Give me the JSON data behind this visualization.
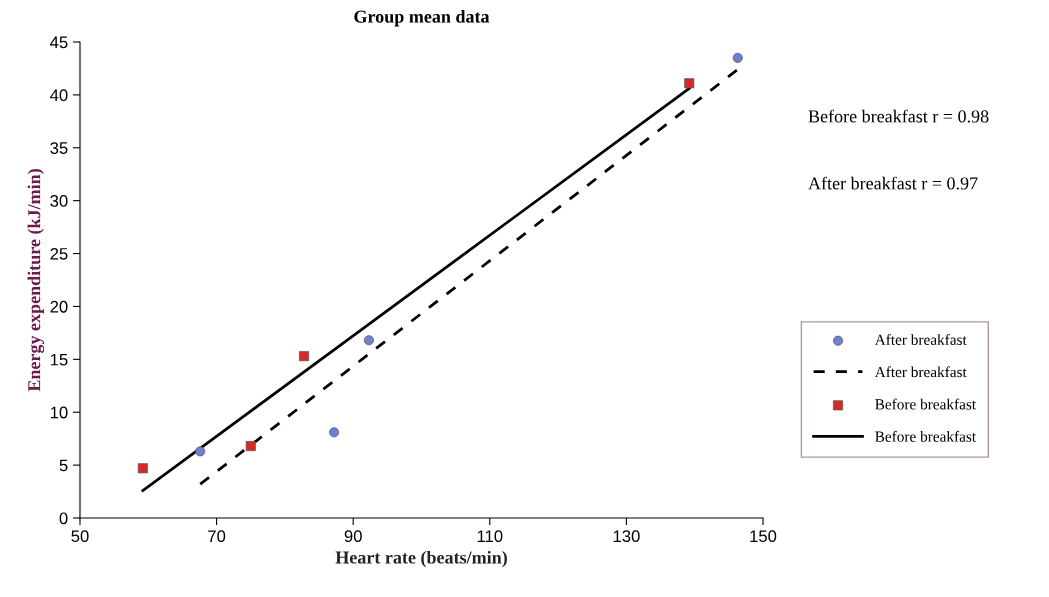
{
  "chart_data": {
    "type": "scatter",
    "title": "Group mean data",
    "xlabel": "Heart rate (beats/min)",
    "ylabel": "Energy expenditure (kJ/min)",
    "xlim": [
      50,
      150
    ],
    "xticks": [
      50,
      70,
      90,
      110,
      130,
      150
    ],
    "ylim": [
      0,
      45
    ],
    "yticks": [
      0,
      5,
      10,
      15,
      20,
      25,
      30,
      35,
      40,
      45
    ],
    "grid": false,
    "legend": "right",
    "series": [
      {
        "name": "After breakfast",
        "marker": "circle",
        "color": "#6f7fd0",
        "x": [
          67.6,
          87.2,
          92.3,
          146.3
        ],
        "values": [
          6.3,
          8.1,
          16.8,
          43.5
        ]
      },
      {
        "name": "After breakfast",
        "type": "line",
        "line_style": "dashed",
        "marker": "none",
        "color": "#000000",
        "x": [
          67.6,
          146.3
        ],
        "values": [
          3.2,
          42.4
        ]
      },
      {
        "name": "Before breakfast",
        "marker": "square",
        "color": "#d42a2a",
        "x": [
          59.2,
          75.0,
          82.8,
          139.2
        ],
        "values": [
          4.7,
          6.8,
          15.3,
          41.1
        ]
      },
      {
        "name": "Before breakfast",
        "type": "line",
        "line_style": "solid",
        "marker": "none",
        "color": "#000000",
        "x": [
          59.2,
          139.2
        ],
        "values": [
          2.6,
          40.6
        ]
      }
    ],
    "annotations": [
      "Before breakfast r = 0.98",
      "After breakfast r = 0.97"
    ]
  }
}
